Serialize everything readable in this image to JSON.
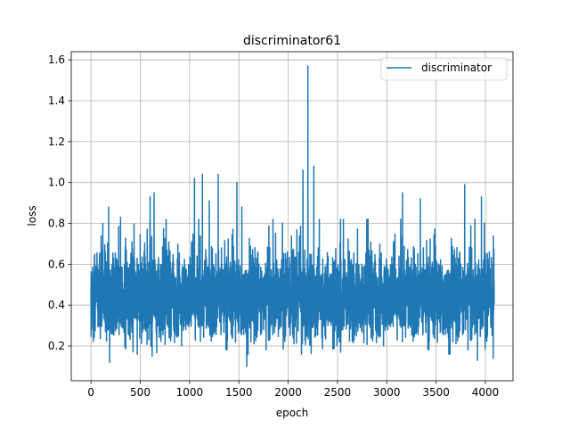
{
  "chart_data": {
    "type": "line",
    "title": "discriminator61",
    "xlabel": "epoch",
    "ylabel": "loss",
    "xlim": [
      -200,
      4280
    ],
    "ylim": [
      0.03,
      1.64
    ],
    "xticks": [
      0,
      500,
      1000,
      1500,
      2000,
      2500,
      3000,
      3500,
      4000
    ],
    "yticks": [
      0.2,
      0.4,
      0.6,
      0.8,
      1.0,
      1.2,
      1.4,
      1.6
    ],
    "grid": true,
    "legend_position": "top-right",
    "series": [
      {
        "name": "discriminator",
        "color": "#1f77b4",
        "n_points": 4090,
        "mean": 0.44,
        "typical_range": [
          0.22,
          0.72
        ],
        "min": 0.1,
        "max": 1.57,
        "max_at_epoch": 2200,
        "notable_peaks": [
          {
            "x": 120,
            "y": 0.8
          },
          {
            "x": 180,
            "y": 0.88
          },
          {
            "x": 300,
            "y": 0.83
          },
          {
            "x": 600,
            "y": 0.93
          },
          {
            "x": 640,
            "y": 0.95
          },
          {
            "x": 1050,
            "y": 1.02
          },
          {
            "x": 1130,
            "y": 1.04
          },
          {
            "x": 1200,
            "y": 0.91
          },
          {
            "x": 1290,
            "y": 1.04
          },
          {
            "x": 1480,
            "y": 1.0
          },
          {
            "x": 1530,
            "y": 0.88
          },
          {
            "x": 2150,
            "y": 1.06
          },
          {
            "x": 2200,
            "y": 1.57
          },
          {
            "x": 2260,
            "y": 1.08
          },
          {
            "x": 2560,
            "y": 0.82
          },
          {
            "x": 3160,
            "y": 0.95
          },
          {
            "x": 3340,
            "y": 0.92
          },
          {
            "x": 3790,
            "y": 0.99
          },
          {
            "x": 3960,
            "y": 0.93
          }
        ],
        "notable_troughs": [
          {
            "x": 190,
            "y": 0.12
          },
          {
            "x": 620,
            "y": 0.15
          },
          {
            "x": 1580,
            "y": 0.1
          },
          {
            "x": 3920,
            "y": 0.13
          },
          {
            "x": 4080,
            "y": 0.14
          }
        ]
      }
    ]
  }
}
